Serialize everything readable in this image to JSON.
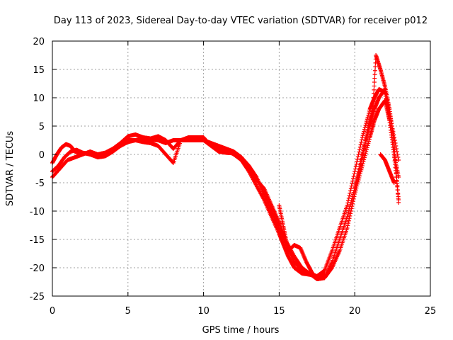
{
  "chart_data": {
    "type": "scatter",
    "title": "Day 113 of 2023, Sidereal Day-to-day VTEC variation (SDTVAR) for receiver p012",
    "xlabel": "GPS time / hours",
    "ylabel": "SDTVAR / TECUs",
    "xlim": [
      0,
      25
    ],
    "ylim": [
      -25,
      20
    ],
    "xticks": [
      "0",
      "5",
      "10",
      "15",
      "20",
      "25"
    ],
    "yticks": [
      "-25",
      "-20",
      "-15",
      "-10",
      "-5",
      "0",
      "5",
      "10",
      "15",
      "20"
    ],
    "grid": true,
    "marker": "+",
    "color": "#ff0000",
    "series": [
      {
        "name": "track-1",
        "x": [
          0,
          0.3,
          0.6,
          0.9,
          1.2,
          1.5,
          1.8,
          2.2,
          2.6,
          3.0,
          3.5,
          4.0,
          4.5,
          5.0,
          5.5,
          6.0,
          6.5,
          7.0,
          7.5,
          8.0,
          8.5,
          9.0,
          9.5,
          10.0,
          10.5,
          11.0,
          11.5,
          12.0,
          12.5,
          13.0,
          13.5,
          14.0,
          14.5,
          15.0,
          15.3,
          15.6,
          16.0,
          16.5,
          17.0,
          17.5,
          18.0,
          18.5,
          19.0,
          19.5,
          20.0,
          20.5,
          21.0,
          21.3,
          21.6,
          22.0,
          22.3,
          22.6,
          22.9
        ],
        "y": [
          -1.5,
          0,
          1.2,
          1.8,
          1.5,
          0.5,
          0.3,
          0.2,
          0,
          -0.3,
          0,
          0.8,
          1.5,
          2.5,
          2.5,
          2.8,
          2.6,
          2.5,
          2.0,
          2.5,
          2.5,
          2.8,
          2.8,
          2.5,
          1.5,
          1,
          0.8,
          0,
          -1,
          -3,
          -5.5,
          -8,
          -11,
          -14,
          -16,
          -18,
          -20,
          -21,
          -21.2,
          -21.5,
          -20.5,
          -17,
          -13,
          -9,
          -3,
          3,
          8,
          10,
          11.5,
          11,
          6,
          0,
          -4
        ]
      },
      {
        "name": "track-2",
        "x": [
          0,
          0.4,
          0.8,
          1.2,
          1.6,
          2.0,
          2.5,
          3.0,
          3.5,
          4.0,
          4.5,
          5.0,
          5.5,
          6.0,
          6.5,
          7.0,
          7.5,
          8.0,
          8.5,
          9.0,
          9.5,
          10.0,
          10.5,
          11.0,
          11.5,
          12.0,
          12.5,
          13.0,
          13.5,
          14.0,
          14.5,
          15.0,
          15.5,
          16.0,
          16.5,
          17.0,
          17.5,
          18.0,
          18.5,
          19.0,
          19.5,
          20.0,
          20.5,
          21.0,
          21.3,
          21.6,
          22.0,
          22.4,
          22.9
        ],
        "y": [
          -3,
          -2,
          -0.5,
          0.5,
          0.8,
          0.3,
          0,
          -0.5,
          -0.3,
          0.5,
          1.5,
          2.2,
          2.5,
          2.2,
          2,
          1.5,
          0,
          -1.5,
          2.5,
          2.5,
          2.5,
          2.5,
          2,
          1.5,
          1,
          0.5,
          -0.5,
          -2,
          -4,
          -7,
          -10,
          -13,
          -16,
          -19,
          -20.5,
          -21,
          -22,
          -21.8,
          -19,
          -15,
          -11,
          -6,
          0,
          5,
          8,
          10,
          11.5,
          6,
          -1
        ]
      },
      {
        "name": "track-3",
        "x": [
          0,
          0.5,
          1.0,
          1.5,
          2.0,
          2.5,
          3.0,
          3.5,
          4.0,
          4.5,
          5.0,
          5.5,
          6.0,
          6.5,
          7.0,
          7.5,
          8.0,
          8.5,
          9.0,
          9.5,
          10.0,
          10.5,
          11.0,
          11.5,
          12.0,
          12.5,
          13.0,
          13.5,
          14.0,
          14.5,
          15.0,
          15.5,
          16.0,
          16.5,
          17.0,
          17.5,
          18.0,
          18.5,
          19.0,
          19.5,
          20.0,
          20.5,
          21.0,
          21.3,
          21.6,
          22.0,
          22.3,
          22.6,
          22.9
        ],
        "y": [
          -4,
          -2.5,
          -1,
          -0.5,
          0,
          0.5,
          0,
          0.3,
          1,
          2,
          3.2,
          3.5,
          3,
          2.8,
          3.2,
          2.5,
          1,
          2.5,
          3,
          3,
          3,
          1.5,
          0.5,
          0.3,
          0.2,
          -0.5,
          -2.5,
          -4.5,
          -6,
          -9,
          -12,
          -15.5,
          -18,
          -20,
          -21,
          -21.5,
          -21.8,
          -20,
          -17,
          -13,
          -7,
          -2,
          3,
          6,
          8,
          9.5,
          6,
          0,
          -8
        ]
      },
      {
        "name": "track-4",
        "x": [
          20.0,
          20.3,
          20.6,
          20.9,
          21.2,
          21.4,
          21.7,
          22.0,
          22.3,
          22.6,
          22.9
        ],
        "y": [
          -6,
          -3,
          1,
          5,
          8,
          17.5,
          15,
          12,
          8,
          2,
          -8.5
        ]
      },
      {
        "name": "track-5",
        "x": [
          15.0,
          15.3,
          15.6,
          16.0,
          16.4,
          16.8,
          17.2,
          17.6,
          18.0
        ],
        "y": [
          -9,
          -13,
          -17,
          -16,
          -16.5,
          -19,
          -21,
          -22,
          -21
        ]
      },
      {
        "name": "track-6",
        "x": [
          21.7,
          22.0,
          22.3,
          22.6
        ],
        "y": [
          0,
          -1,
          -3,
          -5
        ]
      }
    ]
  }
}
